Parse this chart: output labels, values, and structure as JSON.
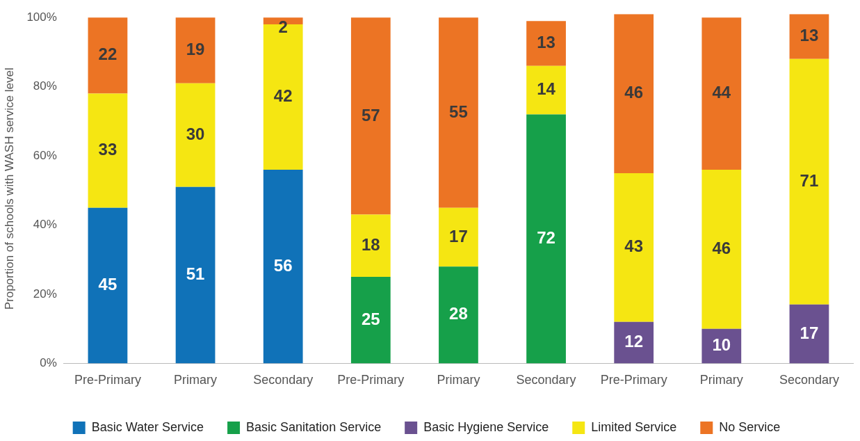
{
  "chart_data": {
    "type": "bar",
    "stacked": true,
    "ylabel": "Proportion of schools with WASH service level",
    "categories": [
      "Pre-Primary",
      "Primary",
      "Secondary",
      "Pre-Primary",
      "Primary",
      "Secondary",
      "Pre-Primary",
      "Primary",
      "Secondary"
    ],
    "series": [
      {
        "name": "Basic Water Service",
        "color": "#1072b8",
        "values": [
          45,
          51,
          56,
          null,
          null,
          null,
          null,
          null,
          null
        ]
      },
      {
        "name": "Basic Sanitation Service",
        "color": "#16a04a",
        "values": [
          null,
          null,
          null,
          25,
          28,
          72,
          null,
          null,
          null
        ]
      },
      {
        "name": "Basic Hygiene Service",
        "color": "#6a5190",
        "values": [
          null,
          null,
          null,
          null,
          null,
          null,
          12,
          10,
          17
        ]
      },
      {
        "name": "Limited Service",
        "color": "#f5e612",
        "values": [
          33,
          30,
          42,
          18,
          17,
          14,
          43,
          46,
          71
        ]
      },
      {
        "name": "No Service",
        "color": "#ec7424",
        "values": [
          22,
          19,
          2,
          57,
          55,
          13,
          46,
          44,
          13
        ]
      }
    ],
    "ylim": [
      0,
      101
    ],
    "yticks": [
      {
        "value": 0,
        "label": "0%"
      },
      {
        "value": 20,
        "label": "20%"
      },
      {
        "value": 40,
        "label": "40%"
      },
      {
        "value": 60,
        "label": "60%"
      },
      {
        "value": 80,
        "label": "80%"
      },
      {
        "value": 100,
        "label": "100%"
      }
    ],
    "grid": false,
    "legend": "bottom",
    "data_labels": true
  }
}
